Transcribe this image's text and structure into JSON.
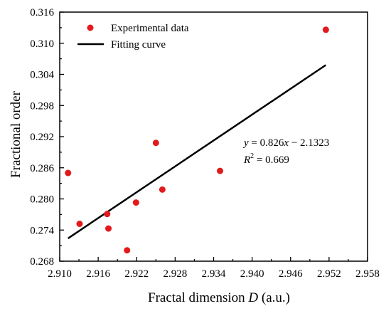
{
  "chart_data": {
    "type": "scatter",
    "xlabel": "Fractal dimension",
    "xlabel_var": "D",
    "xlabel_unit": "(a.u.)",
    "ylabel": "Fractional order",
    "xlim": [
      2.91,
      2.958
    ],
    "ylim": [
      0.268,
      0.316
    ],
    "xticks": [
      "2.910",
      "2.916",
      "2.922",
      "2.928",
      "2.934",
      "2.940",
      "2.946",
      "2.952",
      "2.958"
    ],
    "yticks": [
      "0.268",
      "0.274",
      "0.280",
      "0.286",
      "0.292",
      "0.298",
      "0.304",
      "0.310",
      "0.316"
    ],
    "grid": false,
    "legend_position": "top-left",
    "series": [
      {
        "name": "Experimental data",
        "kind": "scatter",
        "color": "#e31a1c",
        "points": [
          {
            "x": 2.9113,
            "y": 0.285
          },
          {
            "x": 2.9131,
            "y": 0.2752
          },
          {
            "x": 2.9174,
            "y": 0.2771
          },
          {
            "x": 2.9176,
            "y": 0.2743
          },
          {
            "x": 2.9205,
            "y": 0.2701
          },
          {
            "x": 2.9219,
            "y": 0.2793
          },
          {
            "x": 2.925,
            "y": 0.2908
          },
          {
            "x": 2.926,
            "y": 0.2818
          },
          {
            "x": 2.935,
            "y": 0.2854
          },
          {
            "x": 2.9515,
            "y": 0.3126
          }
        ]
      },
      {
        "name": "Fitting curve",
        "kind": "line",
        "color": "#000000",
        "x": [
          2.9113,
          2.9515
        ],
        "y": [
          0.2724,
          0.3058
        ]
      }
    ],
    "annotations": {
      "equation_y": "y",
      "equation_mid": " = 0.826",
      "equation_x": "x",
      "equation_end": " − 2.1323",
      "r2_r": "R",
      "r2_sup": "2",
      "r2_val": " = 0.669"
    }
  }
}
